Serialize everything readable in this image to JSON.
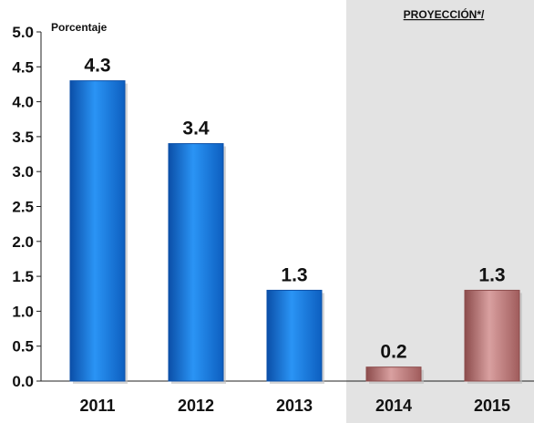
{
  "chart_data": {
    "type": "bar",
    "categories": [
      "2011",
      "2012",
      "2013",
      "2014",
      "2015"
    ],
    "values": [
      4.3,
      3.4,
      1.3,
      0.2,
      1.3
    ],
    "value_labels": [
      "4.3",
      "3.4",
      "1.3",
      "0.2",
      "1.3"
    ],
    "projected": [
      false,
      false,
      false,
      true,
      true
    ],
    "ylim": [
      0,
      5
    ],
    "yticks": [
      "0.0",
      "0.5",
      "1.0",
      "1.5",
      "2.0",
      "2.5",
      "3.0",
      "3.5",
      "4.0",
      "4.5",
      "5.0"
    ],
    "ylabel": "Porcentaje",
    "projection_label": "PROYECCIÓN*/",
    "grid": false,
    "colors": {
      "actual": "#1a7fe6",
      "actual_light": "#4ab0ff",
      "actual_dark": "#0b4fa8",
      "projected": "#c98a8a",
      "projected_light": "#e6b8b8",
      "projected_dark": "#8c4c4c",
      "projection_background": "#e3e3e3"
    }
  }
}
